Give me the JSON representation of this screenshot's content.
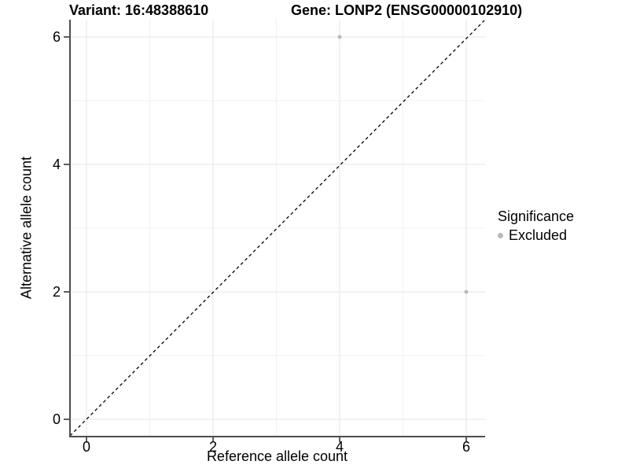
{
  "titles": {
    "variant": "Variant: 16:48388610",
    "gene": "Gene: LONP2 (ENSG00000102910)"
  },
  "chart_data": {
    "type": "scatter",
    "title_left": "Variant: 16:48388610",
    "title_right": "Gene: LONP2 (ENSG00000102910)",
    "xlabel": "Reference allele count",
    "ylabel": "Alternative allele count",
    "xlim": [
      -0.3,
      6.3
    ],
    "ylim": [
      -0.3,
      6.3
    ],
    "x_ticks": [
      "0",
      "2",
      "4",
      "6"
    ],
    "x_tick_values": [
      0,
      2,
      4,
      6
    ],
    "y_ticks": [
      "0",
      "2",
      "4",
      "6"
    ],
    "y_tick_values": [
      0,
      2,
      4,
      6
    ],
    "minor_tick_values": [
      1,
      3,
      5
    ],
    "grid": true,
    "points": [
      {
        "x": 4,
        "y": 6,
        "significance": "Excluded"
      },
      {
        "x": 6,
        "y": 2,
        "significance": "Excluded"
      }
    ],
    "identity_line": {
      "style": "dashed",
      "from": [
        -0.3,
        -0.3
      ],
      "to": [
        6.3,
        6.3
      ],
      "color": "#000000"
    },
    "legend": {
      "title": "Significance",
      "position": "right",
      "entries": [
        {
          "label": "Excluded",
          "color": "#b9b9b9"
        }
      ]
    },
    "colors": {
      "point": "#b9b9b9",
      "axis_line": "#4d4d4d",
      "grid_major": "#e6e6e6",
      "grid_minor": "#f2f2f2",
      "text": "#000000",
      "background": "#ffffff"
    }
  }
}
